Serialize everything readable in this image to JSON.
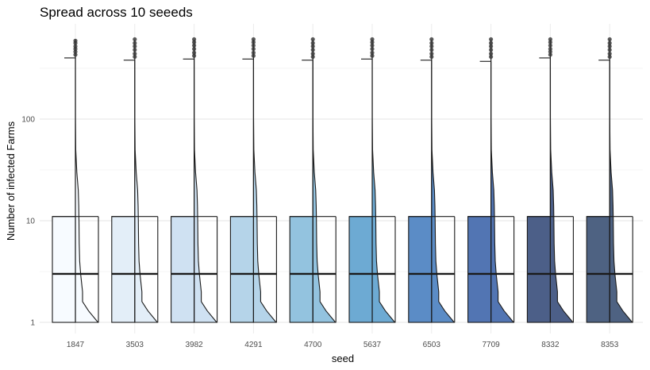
{
  "chart_data": {
    "type": "boxplot",
    "title": "Spread across 10 seeeds",
    "xlabel": "seed",
    "ylabel": "Number of infected Farms",
    "y_scale": "log10",
    "ylim": [
      1,
      700
    ],
    "y_ticks": [
      1,
      10,
      100
    ],
    "y_tick_labels": [
      "1",
      "10",
      "100"
    ],
    "grid": true,
    "categories": [
      "1847",
      "3503",
      "3982",
      "4291",
      "4700",
      "5637",
      "6503",
      "7709",
      "8332",
      "8353"
    ],
    "boxes": [
      {
        "seed": "1847",
        "min": 1,
        "q1": 1,
        "median": 3,
        "q3": 11,
        "upper_whisker": 400,
        "outliers": [
          430,
          460,
          490,
          520,
          560,
          590
        ],
        "fill": "#f7fbff"
      },
      {
        "seed": "3503",
        "min": 1,
        "q1": 1,
        "median": 3,
        "q3": 11,
        "upper_whisker": 380,
        "outliers": [
          410,
          440,
          480,
          520,
          560,
          610
        ],
        "fill": "#e3eef8"
      },
      {
        "seed": "3982",
        "min": 1,
        "q1": 1,
        "median": 3,
        "q3": 11,
        "upper_whisker": 390,
        "outliers": [
          420,
          450,
          490,
          530,
          570,
          610
        ],
        "fill": "#cfe1f2"
      },
      {
        "seed": "4291",
        "min": 1,
        "q1": 1,
        "median": 3,
        "q3": 11,
        "upper_whisker": 390,
        "outliers": [
          420,
          450,
          490,
          530,
          570,
          610
        ],
        "fill": "#b5d4e9"
      },
      {
        "seed": "4700",
        "min": 1,
        "q1": 1,
        "median": 3,
        "q3": 11,
        "upper_whisker": 380,
        "outliers": [
          410,
          440,
          480,
          520,
          560,
          610
        ],
        "fill": "#93c3df"
      },
      {
        "seed": "5637",
        "min": 1,
        "q1": 1,
        "median": 3,
        "q3": 11,
        "upper_whisker": 390,
        "outliers": [
          420,
          450,
          490,
          530,
          570,
          610
        ],
        "fill": "#6daad3"
      },
      {
        "seed": "6503",
        "min": 1,
        "q1": 1,
        "median": 3,
        "q3": 11,
        "upper_whisker": 380,
        "outliers": [
          410,
          440,
          480,
          520,
          560,
          610
        ],
        "fill": "#5b8cc6"
      },
      {
        "seed": "7709",
        "min": 1,
        "q1": 1,
        "median": 3,
        "q3": 11,
        "upper_whisker": 370,
        "outliers": [
          410,
          440,
          480,
          520,
          560,
          610
        ],
        "fill": "#5275b3"
      },
      {
        "seed": "8332",
        "min": 1,
        "q1": 1,
        "median": 3,
        "q3": 11,
        "upper_whisker": 400,
        "outliers": [
          430,
          460,
          490,
          530,
          570,
          610
        ],
        "fill": "#4c5f88"
      },
      {
        "seed": "8353",
        "min": 1,
        "q1": 1,
        "median": 3,
        "q3": 11,
        "upper_whisker": 380,
        "outliers": [
          410,
          440,
          480,
          520,
          560,
          610
        ],
        "fill": "#4e6282"
      }
    ],
    "density_shape": [
      [
        1,
        0.95
      ],
      [
        1.3,
        0.55
      ],
      [
        1.6,
        0.3
      ],
      [
        2,
        0.3
      ],
      [
        3,
        0.22
      ],
      [
        4,
        0.18
      ],
      [
        6,
        0.16
      ],
      [
        10,
        0.15
      ],
      [
        14,
        0.14
      ],
      [
        20,
        0.12
      ],
      [
        30,
        0.06
      ],
      [
        50,
        0.015
      ],
      [
        100,
        0.004
      ],
      [
        600,
        0.002
      ]
    ]
  }
}
